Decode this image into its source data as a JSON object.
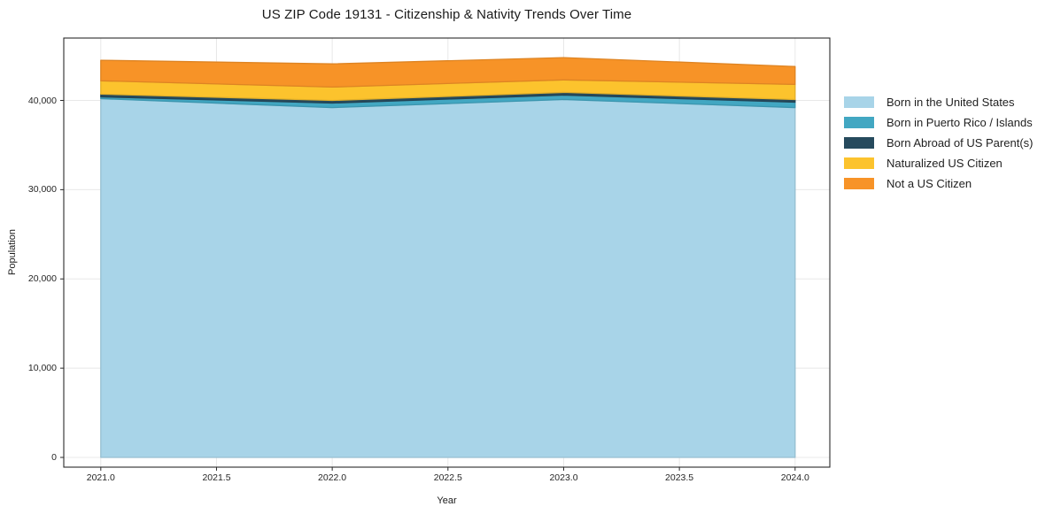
{
  "title": "US ZIP Code 19131 - Citizenship & Nativity Trends Over Time",
  "chart_data": {
    "type": "area",
    "stacked": true,
    "title": "US ZIP Code 19131 - Citizenship & Nativity Trends Over Time",
    "xlabel": "Year",
    "ylabel": "Population",
    "x": [
      2021,
      2022,
      2023,
      2024
    ],
    "series": [
      {
        "name": "Born in the United States",
        "color": "#a8d4e8",
        "values": [
          40200,
          39200,
          40100,
          39200
        ]
      },
      {
        "name": "Born in Puerto Rico / Islands",
        "color": "#42a7c2",
        "values": [
          200,
          500,
          500,
          600
        ]
      },
      {
        "name": "Born Abroad of US Parent(s)",
        "color": "#264a5d",
        "values": [
          300,
          300,
          300,
          300
        ]
      },
      {
        "name": "Naturalized US Citizen",
        "color": "#fcc32d",
        "values": [
          1500,
          1500,
          1400,
          1700
        ]
      },
      {
        "name": "Not a US Citizen",
        "color": "#f79327",
        "values": [
          2300,
          2600,
          2500,
          2000
        ]
      }
    ],
    "totals": [
      44500,
      44100,
      44800,
      43800
    ],
    "xlim": [
      2020.84,
      2024.15
    ],
    "ylim": [
      -1090,
      46990
    ],
    "xticks": [
      2021.0,
      2021.5,
      2022.0,
      2022.5,
      2023.0,
      2023.5,
      2024.0
    ],
    "xtick_labels": [
      "2021.0",
      "2021.5",
      "2022.0",
      "2022.5",
      "2023.0",
      "2023.5",
      "2024.0"
    ],
    "yticks": [
      0,
      10000,
      20000,
      30000,
      40000
    ],
    "ytick_labels": [
      "0",
      "10,000",
      "20,000",
      "30,000",
      "40,000"
    ],
    "grid": true,
    "grid_color": "#e8e8e8",
    "spine_color": "#2a2a2a",
    "legend_position": "right"
  }
}
